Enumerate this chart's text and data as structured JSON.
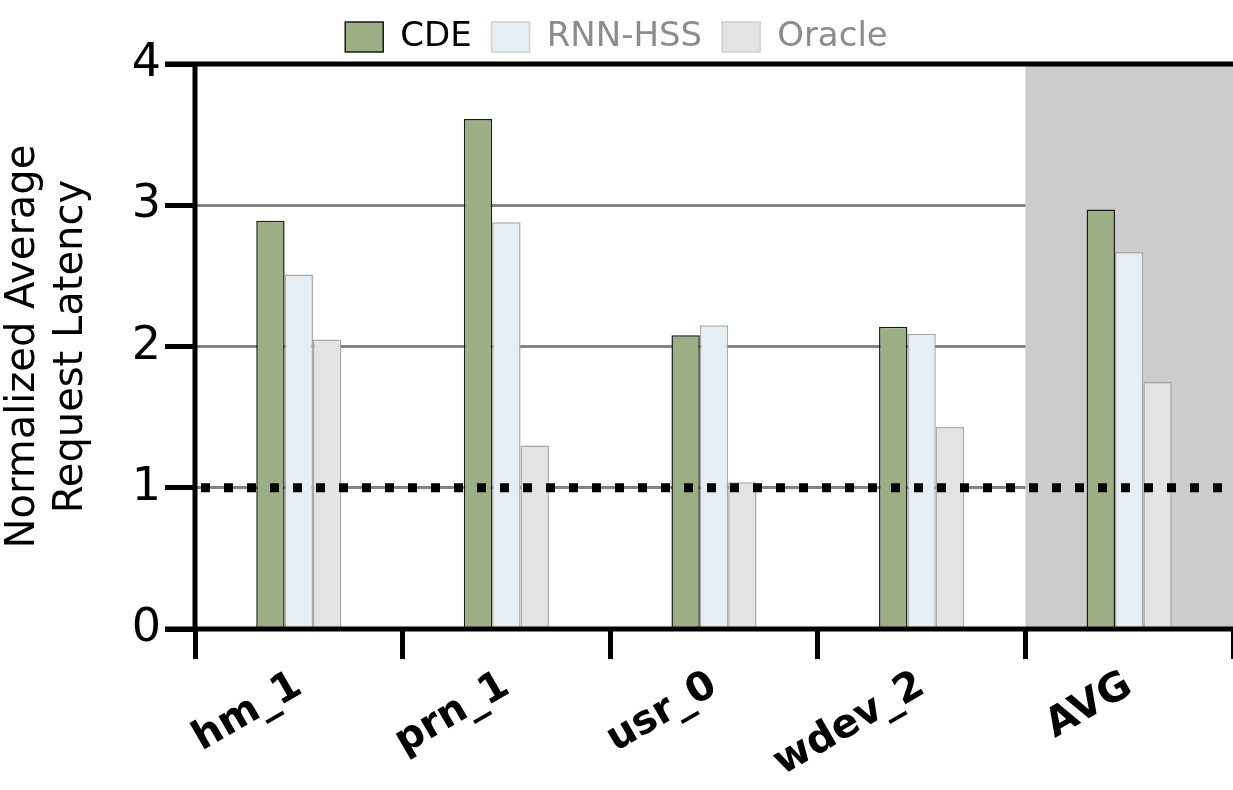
{
  "chart_data": {
    "type": "bar",
    "categories": [
      "hm_1",
      "prn_1",
      "usr_0",
      "wdev_2",
      "AVG"
    ],
    "ylabel": "Normalized Average\nRequest Latency",
    "series": [
      {
        "name": "CDE",
        "color": "#9caf84",
        "values": [
          2.89,
          3.61,
          2.08,
          2.14,
          2.97
        ]
      },
      {
        "name": "RNN-HSS",
        "color": "#e5eef2",
        "values": [
          2.51,
          2.88,
          2.15,
          2.09,
          2.67
        ]
      },
      {
        "name": "Oracle",
        "color": "#e3e3e3",
        "values": [
          2.05,
          1.3,
          1.04,
          1.43,
          1.75
        ]
      }
    ],
    "ylim": [
      0,
      4
    ],
    "yticks": [
      0,
      1,
      2,
      3,
      4
    ],
    "grid": "y",
    "legend": "top",
    "ref_lines": [
      {
        "axis": "y",
        "value": 1,
        "color": "#000000",
        "line_style": "dotted"
      }
    ],
    "bands": [
      {
        "axis": "x",
        "from": "AVG",
        "to": "AVG",
        "color": "#cccccc"
      }
    ]
  }
}
